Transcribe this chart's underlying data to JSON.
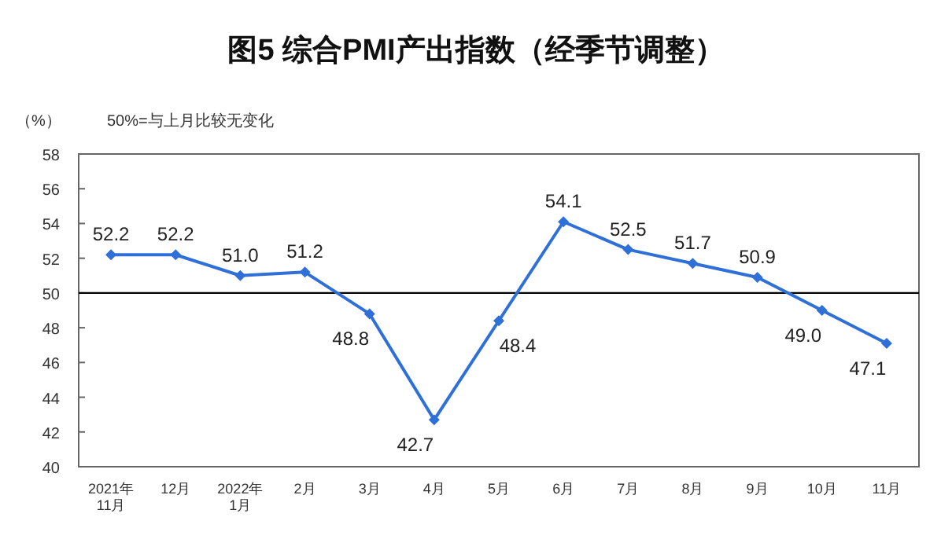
{
  "chart_data": {
    "type": "line",
    "title": "图5 综合PMI产出指数（经季节调整）",
    "ylabel": "（%）",
    "annotations": [
      "50%=与上月比较无变化"
    ],
    "categories": [
      "2021年\n11月",
      "12月",
      "2022年\n1月",
      "2月",
      "3月",
      "4月",
      "5月",
      "6月",
      "7月",
      "8月",
      "9月",
      "10月",
      "11月"
    ],
    "series": [
      {
        "color": "#2f6fd8",
        "values": [
          52.2,
          52.2,
          51.0,
          51.2,
          48.8,
          42.7,
          48.4,
          54.1,
          52.5,
          51.7,
          50.9,
          49.0,
          47.1
        ]
      }
    ],
    "value_labels": [
      "52.2",
      "52.2",
      "51.0",
      "51.2",
      "48.8",
      "42.7",
      "48.4",
      "54.1",
      "52.5",
      "51.7",
      "50.9",
      "49.0",
      "47.1"
    ],
    "ylim": [
      40,
      58
    ],
    "yticks": [
      40,
      42,
      44,
      46,
      48,
      50,
      52,
      54,
      56,
      58
    ],
    "ref_lines": [
      {
        "axis": "y",
        "value": 50,
        "color": "#000000"
      }
    ],
    "marker": "diamond",
    "line_style": "solid",
    "grid": false
  }
}
